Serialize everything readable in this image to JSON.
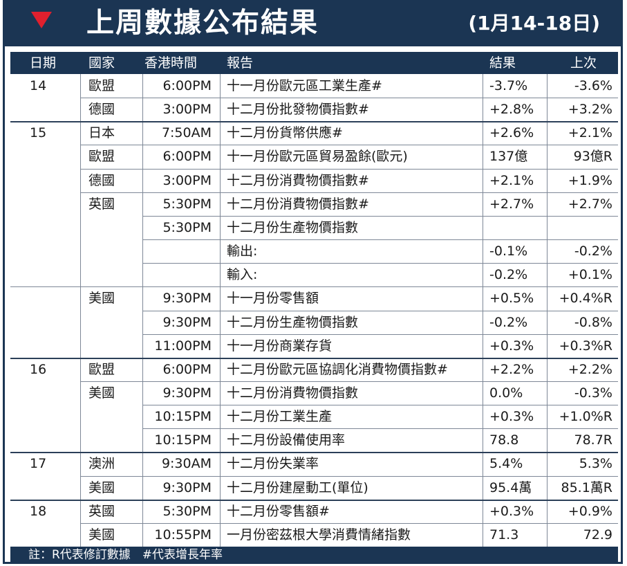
{
  "title": {
    "main": "上周數據公布結果",
    "date_range": "(1月14-18日)"
  },
  "columns": {
    "date": "日期",
    "country": "國家",
    "time": "香港時間",
    "report": "報告",
    "result": "結果",
    "previous": "上次"
  },
  "rows": [
    {
      "date": "14",
      "country": "歐盟",
      "time": "6:00PM",
      "report": "十一月份歐元區工業生產#",
      "result": "-3.7%",
      "previous": "-3.6%"
    },
    {
      "date": "",
      "country": "德國",
      "time": "3:00PM",
      "report": "十二月份批發物價指數#",
      "result": "+2.8%",
      "previous": "+3.2%"
    },
    {
      "date": "15",
      "country": "日本",
      "time": "7:50AM",
      "report": "十二月份貨幣供應#",
      "result": "+2.6%",
      "previous": "+2.1%"
    },
    {
      "date": "",
      "country": "歐盟",
      "time": "6:00PM",
      "report": "十一月份歐元區貿易盈餘(歐元)",
      "result": "137億",
      "previous": "93億R"
    },
    {
      "date": "",
      "country": "德國",
      "time": "3:00PM",
      "report": "十二月份消費物價指數#",
      "result": "+2.1%",
      "previous": "+1.9%"
    },
    {
      "date": "",
      "country": "英國",
      "time": "5:30PM",
      "report": "十二月份消費物價指數#",
      "result": "+2.7%",
      "previous": "+2.7%"
    },
    {
      "date": "",
      "country": "",
      "time": "5:30PM",
      "report": "十二月份生產物價指數",
      "result": "",
      "previous": ""
    },
    {
      "date": "",
      "country": "",
      "time": "",
      "report": "輸出:",
      "result": "-0.1%",
      "previous": "-0.2%"
    },
    {
      "date": "",
      "country": "",
      "time": "",
      "report": "輸入:",
      "result": "-0.2%",
      "previous": "+0.1%"
    },
    {
      "date": "",
      "country": "美國",
      "time": "9:30PM",
      "report": "十一月份零售額",
      "result": "+0.5%",
      "previous": "+0.4%R"
    },
    {
      "date": "",
      "country": "",
      "time": "9:30PM",
      "report": "十二月份生產物價指數",
      "result": "-0.2%",
      "previous": "-0.8%"
    },
    {
      "date": "",
      "country": "",
      "time": "11:00PM",
      "report": "十一月份商業存貨",
      "result": "+0.3%",
      "previous": "+0.3%R"
    },
    {
      "date": "16",
      "country": "歐盟",
      "time": "6:00PM",
      "report": "十二月份歐元區協調化消費物價指數#",
      "result": "+2.2%",
      "previous": "+2.2%"
    },
    {
      "date": "",
      "country": "美國",
      "time": "9:30PM",
      "report": "十二月份消費物價指數",
      "result": "0.0%",
      "previous": "-0.3%"
    },
    {
      "date": "",
      "country": "",
      "time": "10:15PM",
      "report": "十二月份工業生產",
      "result": "+0.3%",
      "previous": "+1.0%R"
    },
    {
      "date": "",
      "country": "",
      "time": "10:15PM",
      "report": "十二月份設備使用率",
      "result": "78.8",
      "previous": "78.7R"
    },
    {
      "date": "17",
      "country": "澳洲",
      "time": "9:30AM",
      "report": "十二月份失業率",
      "result": "5.4%",
      "previous": "5.3%"
    },
    {
      "date": "",
      "country": "美國",
      "time": "9:30PM",
      "report": "十二月份建屋動工(單位)",
      "result": "95.4萬",
      "previous": "85.1萬R"
    },
    {
      "date": "18",
      "country": "英國",
      "time": "5:30PM",
      "report": "十二月份零售額#",
      "result": "+0.3%",
      "previous": "+0.9%"
    },
    {
      "date": "",
      "country": "美國",
      "time": "10:55PM",
      "report": "一月份密茲根大學消費情緒指數",
      "result": "71.3",
      "previous": "72.9"
    }
  ],
  "footer": {
    "note": "註：R代表修訂數據　#代表增長年率"
  },
  "colors": {
    "navy": "#1b3553",
    "marker_red": "#e0202e",
    "rule_gray": "#7d8796"
  },
  "icons": {
    "title_marker": "down-triangle-icon"
  }
}
